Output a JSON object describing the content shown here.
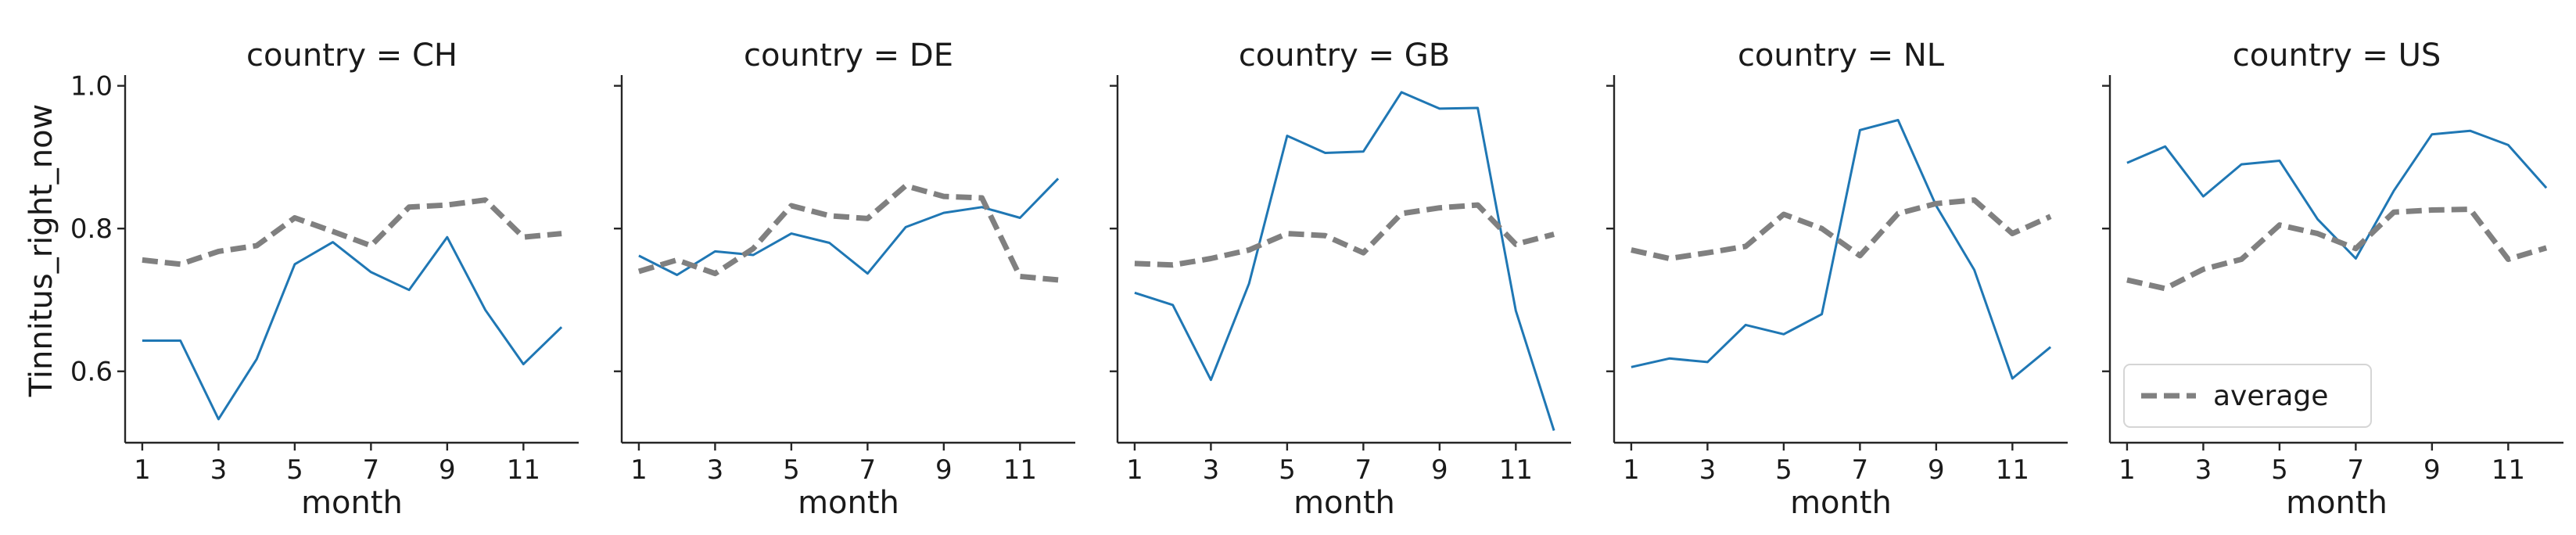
{
  "chart_data": {
    "type": "line",
    "facet_label": "country",
    "xlabel": "month",
    "ylabel": "Tinnitus_right_now",
    "x": [
      1,
      2,
      3,
      4,
      5,
      6,
      7,
      8,
      9,
      10,
      11,
      12
    ],
    "xticks": [
      1,
      3,
      5,
      7,
      9,
      11
    ],
    "yticks": [
      0.6,
      0.8,
      1.0
    ],
    "ylim": [
      0.5,
      1.015
    ],
    "xlim": [
      0.55,
      12.45
    ],
    "legend": {
      "label": "average",
      "location": "lower-left",
      "panel": "US"
    },
    "colors": {
      "country_line": "#1f77b4",
      "average_line": "#808080"
    },
    "panels": [
      {
        "title": "country = CH",
        "country": [
          0.643,
          0.643,
          0.533,
          0.617,
          0.75,
          0.781,
          0.739,
          0.714,
          0.788,
          0.686,
          0.61,
          0.662
        ],
        "average": [
          0.756,
          0.75,
          0.768,
          0.776,
          0.815,
          0.796,
          0.776,
          0.83,
          0.833,
          0.84,
          0.788,
          0.793
        ]
      },
      {
        "title": "country = DE",
        "country": [
          0.762,
          0.735,
          0.768,
          0.763,
          0.793,
          0.78,
          0.737,
          0.802,
          0.822,
          0.83,
          0.815,
          0.87
        ],
        "average": [
          0.74,
          0.756,
          0.737,
          0.772,
          0.832,
          0.818,
          0.814,
          0.86,
          0.845,
          0.843,
          0.733,
          0.728
        ]
      },
      {
        "title": "country = GB",
        "country": [
          0.71,
          0.693,
          0.588,
          0.723,
          0.93,
          0.906,
          0.908,
          0.991,
          0.968,
          0.969,
          0.685,
          0.517
        ],
        "average": [
          0.751,
          0.749,
          0.758,
          0.77,
          0.793,
          0.79,
          0.766,
          0.821,
          0.829,
          0.833,
          0.778,
          0.792
        ]
      },
      {
        "title": "country = NL",
        "country": [
          0.606,
          0.618,
          0.613,
          0.665,
          0.652,
          0.68,
          0.938,
          0.952,
          0.832,
          0.742,
          0.59,
          0.634
        ],
        "average": [
          0.77,
          0.758,
          0.766,
          0.775,
          0.82,
          0.8,
          0.762,
          0.821,
          0.835,
          0.84,
          0.793,
          0.817
        ]
      },
      {
        "title": "country = US",
        "country": [
          0.892,
          0.915,
          0.845,
          0.89,
          0.895,
          0.813,
          0.758,
          0.853,
          0.932,
          0.937,
          0.917,
          0.857
        ],
        "average": [
          0.728,
          0.716,
          0.743,
          0.757,
          0.805,
          0.793,
          0.772,
          0.823,
          0.826,
          0.827,
          0.757,
          0.773
        ]
      }
    ]
  }
}
